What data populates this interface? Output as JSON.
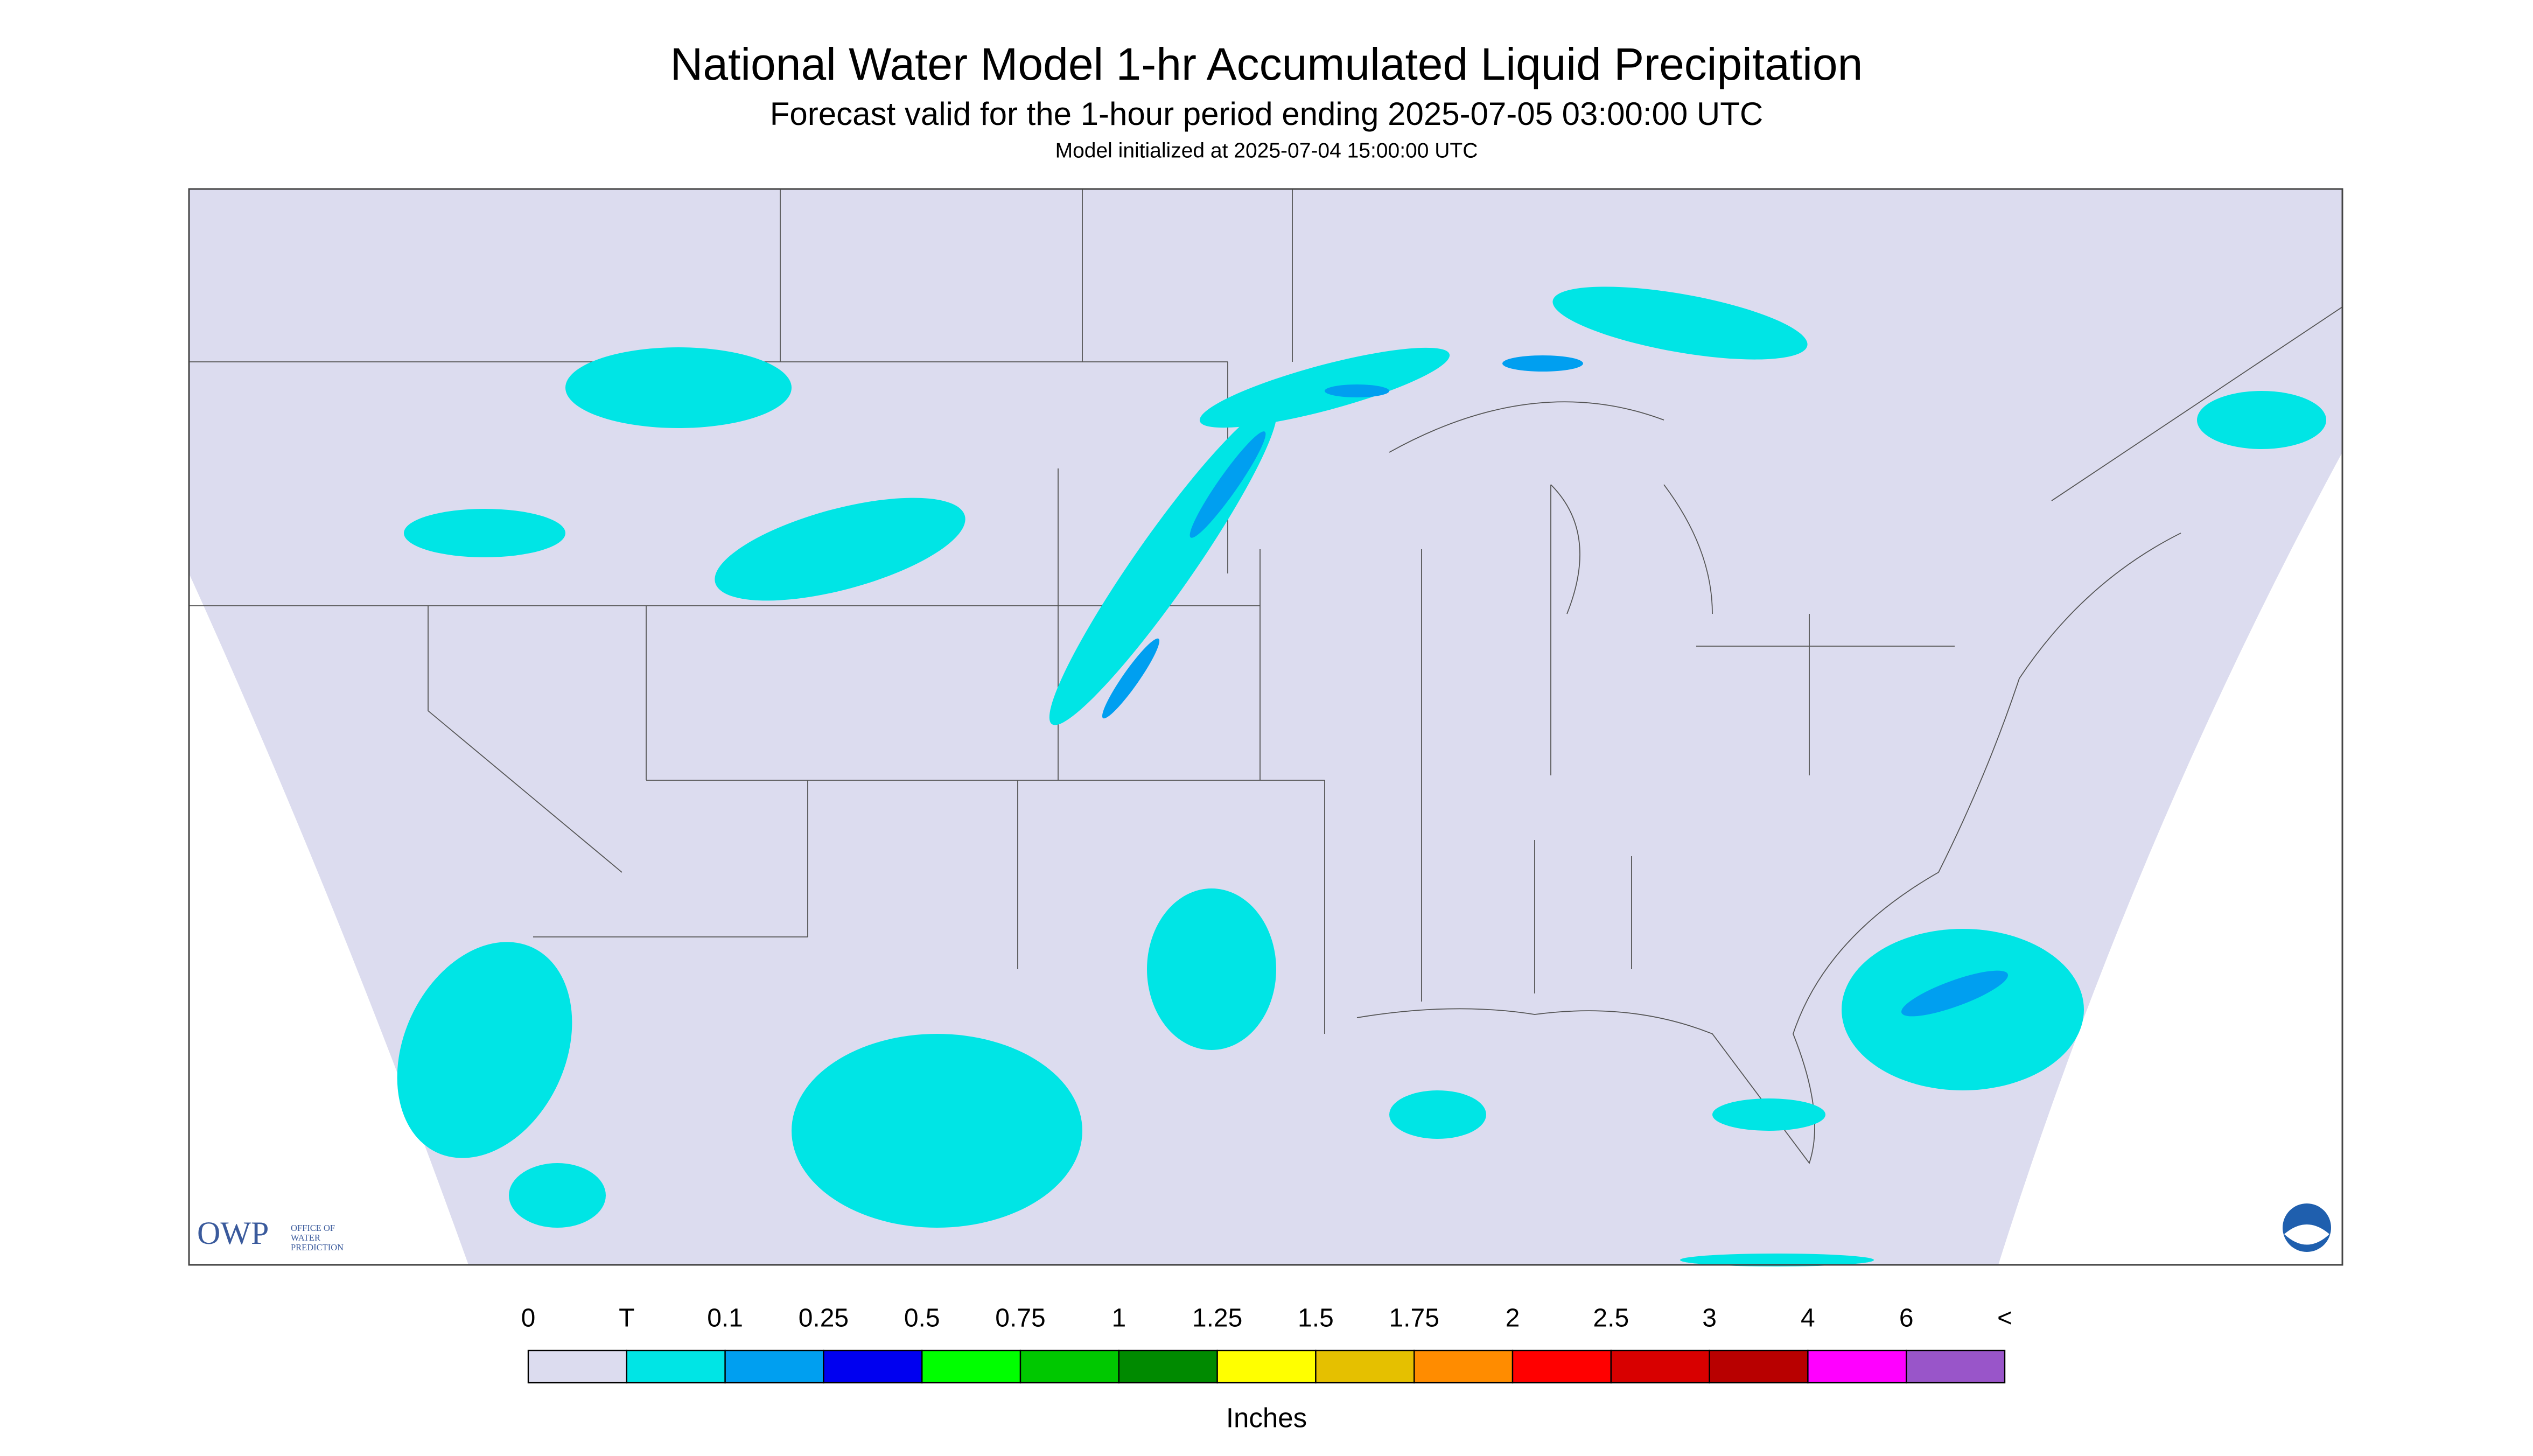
{
  "header": {
    "title": "National Water Model 1-hr Accumulated Liquid Precipitation",
    "subtitle": "Forecast valid for the 1-hour period ending 2025-07-05 03:00:00 UTC",
    "model_init": "Model initialized at 2025-07-04 15:00:00 UTC"
  },
  "legend": {
    "labels": [
      "0",
      "T",
      "0.1",
      "0.25",
      "0.5",
      "0.75",
      "1",
      "1.25",
      "1.5",
      "1.75",
      "2",
      "2.5",
      "3",
      "4",
      "6",
      "<"
    ],
    "colors": [
      "#dcdcef",
      "#00e5e5",
      "#009ff0",
      "#0000f0",
      "#00ff00",
      "#00c800",
      "#008a00",
      "#ffff00",
      "#e5c000",
      "#ff8c00",
      "#ff0000",
      "#d80000",
      "#b80000",
      "#ff00ff",
      "#9955c9"
    ],
    "unit": "Inches"
  },
  "logo": {
    "text": "OWP",
    "subtext": [
      "OFFICE OF",
      "WATER",
      "PREDICTION"
    ]
  }
}
